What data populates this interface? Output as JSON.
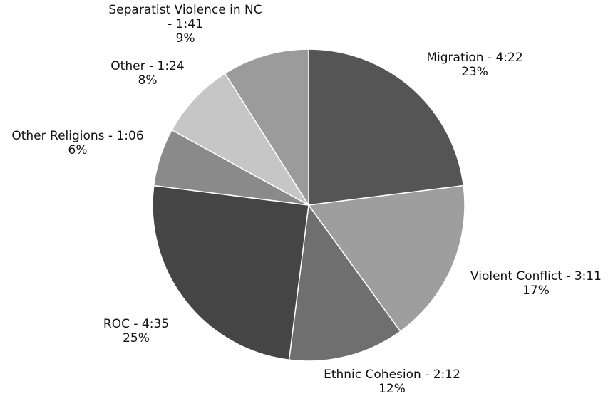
{
  "chart_data": {
    "type": "pie",
    "title": "",
    "start_angle_deg": 0,
    "direction": "clockwise",
    "slices": [
      {
        "label": "Migration - 4:22",
        "time": "4:22",
        "percent": 23,
        "percent_text": "23%",
        "color": "#555555"
      },
      {
        "label": "Violent Conflict - 3:11",
        "time": "3:11",
        "percent": 17,
        "percent_text": "17%",
        "color": "#9e9e9e"
      },
      {
        "label": "Ethnic Cohesion - 2:12",
        "time": "2:12",
        "percent": 12,
        "percent_text": "12%",
        "color": "#6f6f6f"
      },
      {
        "label": "ROC - 4:35",
        "time": "4:35",
        "percent": 25,
        "percent_text": "25%",
        "color": "#454545"
      },
      {
        "label": "Other Religions - 1:06",
        "time": "1:06",
        "percent": 6,
        "percent_text": "6%",
        "color": "#8a8a8a"
      },
      {
        "label": "Other - 1:24",
        "time": "1:24",
        "percent": 8,
        "percent_text": "8%",
        "color": "#c6c6c6"
      },
      {
        "label": [
          "Separatist Violence in NC",
          "- 1:41"
        ],
        "time": "1:41",
        "percent": 9,
        "percent_text": "9%",
        "color": "#9b9b9b"
      }
    ]
  }
}
